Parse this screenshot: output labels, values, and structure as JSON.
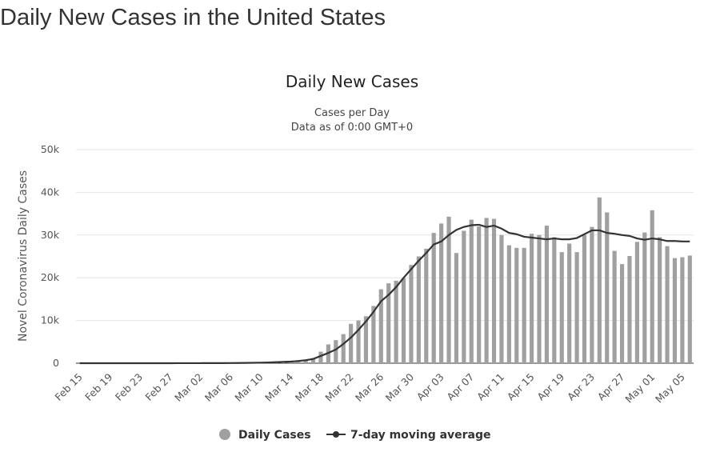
{
  "page": {
    "title": "Daily New Cases in the United States"
  },
  "chart_data": {
    "type": "bar",
    "title": "Daily New Cases",
    "subtitle_lines": [
      "Cases per Day",
      "Data as of 0:00 GMT+0"
    ],
    "xlabel": "",
    "ylabel": "Novel Coronavirus Daily Cases",
    "ylim": [
      0,
      50000
    ],
    "yticks": [
      0,
      10000,
      20000,
      30000,
      40000,
      50000
    ],
    "ytick_labels": [
      "0",
      "10k",
      "20k",
      "30k",
      "40k",
      "50k"
    ],
    "grid": true,
    "legend_position": "bottom-center",
    "colors": {
      "bars": "#a0a0a0",
      "line": "#333333",
      "grid": "#e6e6e6",
      "axis": "#333333"
    },
    "categories": [
      "Feb 15",
      "Feb 16",
      "Feb 17",
      "Feb 18",
      "Feb 19",
      "Feb 20",
      "Feb 21",
      "Feb 22",
      "Feb 23",
      "Feb 24",
      "Feb 25",
      "Feb 26",
      "Feb 27",
      "Feb 28",
      "Feb 29",
      "Mar 01",
      "Mar 02",
      "Mar 03",
      "Mar 04",
      "Mar 05",
      "Mar 06",
      "Mar 07",
      "Mar 08",
      "Mar 09",
      "Mar 10",
      "Mar 11",
      "Mar 12",
      "Mar 13",
      "Mar 14",
      "Mar 15",
      "Mar 16",
      "Mar 17",
      "Mar 18",
      "Mar 19",
      "Mar 20",
      "Mar 21",
      "Mar 22",
      "Mar 23",
      "Mar 24",
      "Mar 25",
      "Mar 26",
      "Mar 27",
      "Mar 28",
      "Mar 29",
      "Mar 30",
      "Mar 31",
      "Apr 01",
      "Apr 02",
      "Apr 03",
      "Apr 04",
      "Apr 05",
      "Apr 06",
      "Apr 07",
      "Apr 08",
      "Apr 09",
      "Apr 10",
      "Apr 11",
      "Apr 12",
      "Apr 13",
      "Apr 14",
      "Apr 15",
      "Apr 16",
      "Apr 17",
      "Apr 18",
      "Apr 19",
      "Apr 20",
      "Apr 21",
      "Apr 22",
      "Apr 23",
      "Apr 24",
      "Apr 25",
      "Apr 26",
      "Apr 27",
      "Apr 28",
      "Apr 29",
      "Apr 30",
      "May 01",
      "May 02",
      "May 03",
      "May 04",
      "May 05",
      "May 06"
    ],
    "x_tick_labels": [
      "Feb 15",
      "Feb 19",
      "Feb 23",
      "Feb 27",
      "Mar 02",
      "Mar 06",
      "Mar 10",
      "Mar 14",
      "Mar 18",
      "Mar 22",
      "Mar 26",
      "Mar 30",
      "Apr 03",
      "Apr 07",
      "Apr 11",
      "Apr 15",
      "Apr 19",
      "Apr 23",
      "Apr 27",
      "May 01",
      "May 05"
    ],
    "series": [
      {
        "name": "Daily Cases",
        "type": "bar",
        "values": [
          0,
          0,
          0,
          0,
          0,
          0,
          0,
          0,
          0,
          0,
          0,
          10,
          10,
          20,
          20,
          20,
          20,
          30,
          40,
          50,
          70,
          70,
          120,
          170,
          250,
          300,
          400,
          450,
          550,
          700,
          800,
          1200,
          2700,
          4400,
          5400,
          6800,
          9200,
          10000,
          11000,
          13400,
          17300,
          18700,
          19300,
          19900,
          23000,
          25000,
          26800,
          30500,
          32700,
          34300,
          25800,
          31000,
          33600,
          32000,
          34000,
          33800,
          30000,
          27600,
          27000,
          27000,
          30300,
          30000,
          32200,
          29500,
          26000,
          28000,
          26000,
          30000,
          31900,
          38800,
          35300,
          26300,
          23200,
          25100,
          28400,
          30600,
          35800,
          29500,
          27400,
          24600,
          24800,
          25200
        ]
      },
      {
        "name": "7-day moving average",
        "type": "line",
        "values": [
          0,
          0,
          0,
          0,
          0,
          0,
          0,
          0,
          0,
          0,
          0,
          5,
          5,
          8,
          10,
          12,
          15,
          18,
          25,
          30,
          40,
          50,
          70,
          90,
          130,
          170,
          230,
          310,
          380,
          500,
          700,
          1000,
          1700,
          2400,
          3200,
          4500,
          6000,
          7800,
          9800,
          12000,
          14500,
          16000,
          17800,
          20000,
          22000,
          24000,
          25800,
          27800,
          28500,
          30000,
          31200,
          31900,
          32300,
          32400,
          31900,
          32200,
          31500,
          30500,
          30200,
          29600,
          29400,
          29200,
          29000,
          29200,
          29000,
          29000,
          29300,
          30200,
          31100,
          31100,
          30500,
          30300,
          30000,
          29800,
          29200,
          28900,
          29200,
          29000,
          28600,
          28600,
          28500,
          28500
        ]
      }
    ]
  }
}
